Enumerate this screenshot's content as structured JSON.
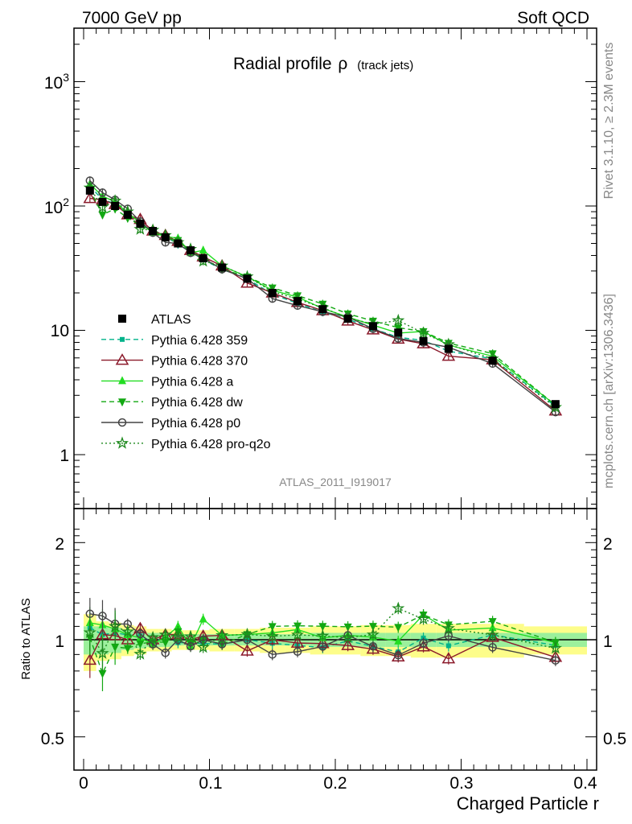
{
  "header": {
    "left": "7000 GeV pp",
    "right": "Soft QCD"
  },
  "main_title": "Radial profile",
  "main_title_symbol": "ρ",
  "main_title_sub": "(track jets)",
  "side_label_top": "Rivet 3.1.10, ≥ 2.3M events",
  "side_label_bottom": "mcplots.cern.ch [arXiv:1306.3436]",
  "analysis_id": "ATLAS_2011_I919017",
  "ratio_ylabel": "Ratio to ATLAS",
  "xlabel": "Charged Particle r",
  "ticks": {
    "main_y": [
      "10",
      "10",
      "10",
      "1"
    ],
    "main_y_exp": [
      "3",
      "2",
      "",
      ""
    ],
    "ratio_y": [
      "2",
      "1",
      "0.5"
    ],
    "ratio_y_right": [
      "2",
      "1",
      "0.5"
    ],
    "x": [
      "0",
      "0.1",
      "0.2",
      "0.3",
      "0.4"
    ]
  },
  "legend": [
    {
      "label": "ATLAS",
      "color": "#000000",
      "marker": "square",
      "line": "none"
    },
    {
      "label": "Pythia 6.428 359",
      "color": "#00b38a",
      "marker": "square-small",
      "line": "dashed"
    },
    {
      "label": "Pythia 6.428 370",
      "color": "#8b1a2b",
      "marker": "triangle-open",
      "line": "solid"
    },
    {
      "label": "Pythia 6.428 a",
      "color": "#22dd22",
      "marker": "triangle",
      "line": "solid"
    },
    {
      "label": "Pythia 6.428 dw",
      "color": "#12a812",
      "marker": "triangle-down",
      "line": "dashed"
    },
    {
      "label": "Pythia 6.428 p0",
      "color": "#444444",
      "marker": "circle-open",
      "line": "solid"
    },
    {
      "label": "Pythia 6.428 pro-q2o",
      "color": "#1e8a1e",
      "marker": "star-open",
      "line": "dotted"
    }
  ],
  "chart_data": {
    "type": "line",
    "main_panel": {
      "ylog": true,
      "ylim": [
        0.4,
        2500
      ],
      "xlim": [
        -0.01,
        0.41
      ]
    },
    "ratio_panel": {
      "ylim": [
        0.42,
        2.3
      ],
      "reference_line": 1
    },
    "x": [
      0.005,
      0.015,
      0.025,
      0.035,
      0.045,
      0.055,
      0.065,
      0.075,
      0.085,
      0.095,
      0.11,
      0.13,
      0.15,
      0.17,
      0.19,
      0.21,
      0.23,
      0.25,
      0.27,
      0.29,
      0.325,
      0.375
    ],
    "x_bins": [
      [
        0.0,
        0.01
      ],
      [
        0.01,
        0.02
      ],
      [
        0.02,
        0.03
      ],
      [
        0.03,
        0.04
      ],
      [
        0.04,
        0.05
      ],
      [
        0.05,
        0.06
      ],
      [
        0.06,
        0.07
      ],
      [
        0.07,
        0.08
      ],
      [
        0.08,
        0.09
      ],
      [
        0.09,
        0.1
      ],
      [
        0.1,
        0.12
      ],
      [
        0.12,
        0.14
      ],
      [
        0.14,
        0.16
      ],
      [
        0.16,
        0.18
      ],
      [
        0.18,
        0.2
      ],
      [
        0.2,
        0.22
      ],
      [
        0.22,
        0.24
      ],
      [
        0.24,
        0.26
      ],
      [
        0.26,
        0.28
      ],
      [
        0.28,
        0.3
      ],
      [
        0.3,
        0.35
      ],
      [
        0.35,
        0.4
      ]
    ],
    "data": {
      "name": "ATLAS",
      "values": [
        133,
        108,
        100,
        85,
        72,
        63,
        56,
        50,
        44,
        38,
        32,
        26,
        20,
        17.2,
        14.8,
        12.4,
        10.8,
        9.6,
        8.2,
        7.1,
        5.7,
        2.55
      ],
      "band_inner": [
        0.1,
        0.1,
        0.09,
        0.07,
        0.06,
        0.05,
        0.05,
        0.04,
        0.04,
        0.04,
        0.04,
        0.04,
        0.04,
        0.04,
        0.05,
        0.05,
        0.05,
        0.05,
        0.05,
        0.05,
        0.05,
        0.05
      ],
      "band_outer": [
        0.2,
        0.14,
        0.13,
        0.11,
        0.1,
        0.08,
        0.08,
        0.07,
        0.07,
        0.07,
        0.08,
        0.08,
        0.09,
        0.09,
        0.1,
        0.1,
        0.11,
        0.11,
        0.12,
        0.12,
        0.12,
        0.1
      ]
    },
    "series": [
      {
        "name": "Pythia 6.428 359",
        "values": [
          145,
          112,
          105,
          88,
          74,
          62,
          57,
          49,
          43,
          37,
          31,
          26,
          19.5,
          16.5,
          14.0,
          12.3,
          10.3,
          8.8,
          8.3,
          6.8,
          5.9,
          2.45
        ]
      },
      {
        "name": "Pythia 6.428 370",
        "values": [
          115,
          112,
          103,
          85,
          78,
          63,
          58,
          52,
          44,
          39,
          33,
          24,
          20,
          16.8,
          14.4,
          11.9,
          10.1,
          8.5,
          7.8,
          6.2,
          5.8,
          2.25
        ]
      },
      {
        "name": "Pythia 6.428 a",
        "values": [
          150,
          120,
          108,
          88,
          73,
          61,
          57,
          55,
          42,
          44,
          33,
          27,
          21,
          18.5,
          15.0,
          12.8,
          11.0,
          9.5,
          9.8,
          7.6,
          6.2,
          2.5
        ]
      },
      {
        "name": "Pythia 6.428 dw",
        "values": [
          135,
          85,
          95,
          80,
          70,
          62,
          55,
          53,
          43,
          38,
          31,
          27,
          22,
          19,
          16.3,
          13.6,
          11.9,
          10.5,
          9.8,
          7.9,
          6.5,
          2.5
        ]
      },
      {
        "name": "Pythia 6.428 p0",
        "values": [
          160,
          128,
          112,
          95,
          75,
          61,
          51,
          50,
          42,
          38,
          31,
          26,
          18,
          15.8,
          14.1,
          12.8,
          10.3,
          8.6,
          8.0,
          7.3,
          5.4,
          2.2
        ]
      },
      {
        "name": "Pythia 6.428 pro-q2o",
        "values": [
          140,
          98,
          110,
          90,
          65,
          64,
          58,
          51,
          45,
          36,
          33,
          27,
          20.5,
          17.8,
          15.2,
          12.6,
          11.2,
          12.0,
          9.5,
          7.7,
          5.9,
          2.4
        ]
      }
    ]
  }
}
